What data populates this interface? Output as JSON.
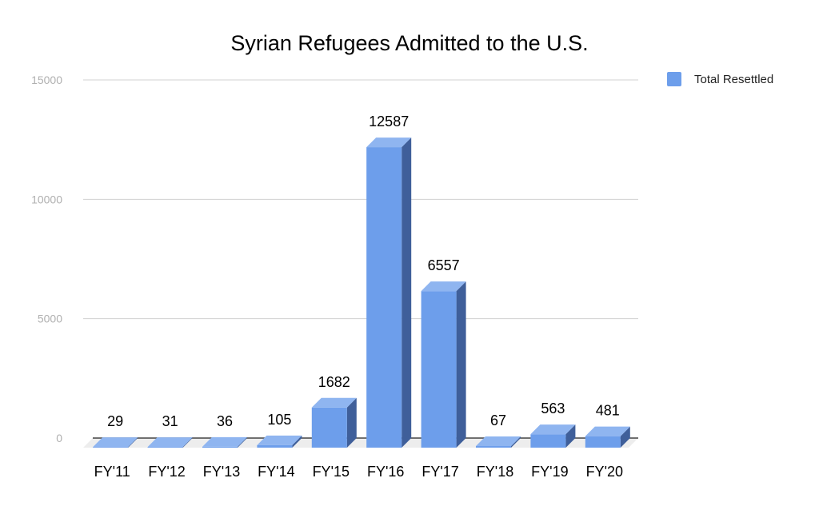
{
  "chart_data": {
    "type": "bar",
    "title": "Syrian Refugees Admitted to the U.S.",
    "xlabel": "",
    "ylabel": "",
    "categories": [
      "FY'11",
      "FY'12",
      "FY'13",
      "FY'14",
      "FY'15",
      "FY'16",
      "FY'17",
      "FY'18",
      "FY'19",
      "FY'20"
    ],
    "series": [
      {
        "name": "Total Resettled",
        "color": "#6d9eeb",
        "values": [
          29,
          31,
          36,
          105,
          1682,
          12587,
          6557,
          67,
          563,
          481
        ]
      }
    ],
    "ylim": [
      0,
      15000
    ],
    "yticks": [
      "0",
      "5000",
      "10000",
      "15000"
    ],
    "grid": true,
    "legend_position": "right",
    "style": "3d"
  }
}
